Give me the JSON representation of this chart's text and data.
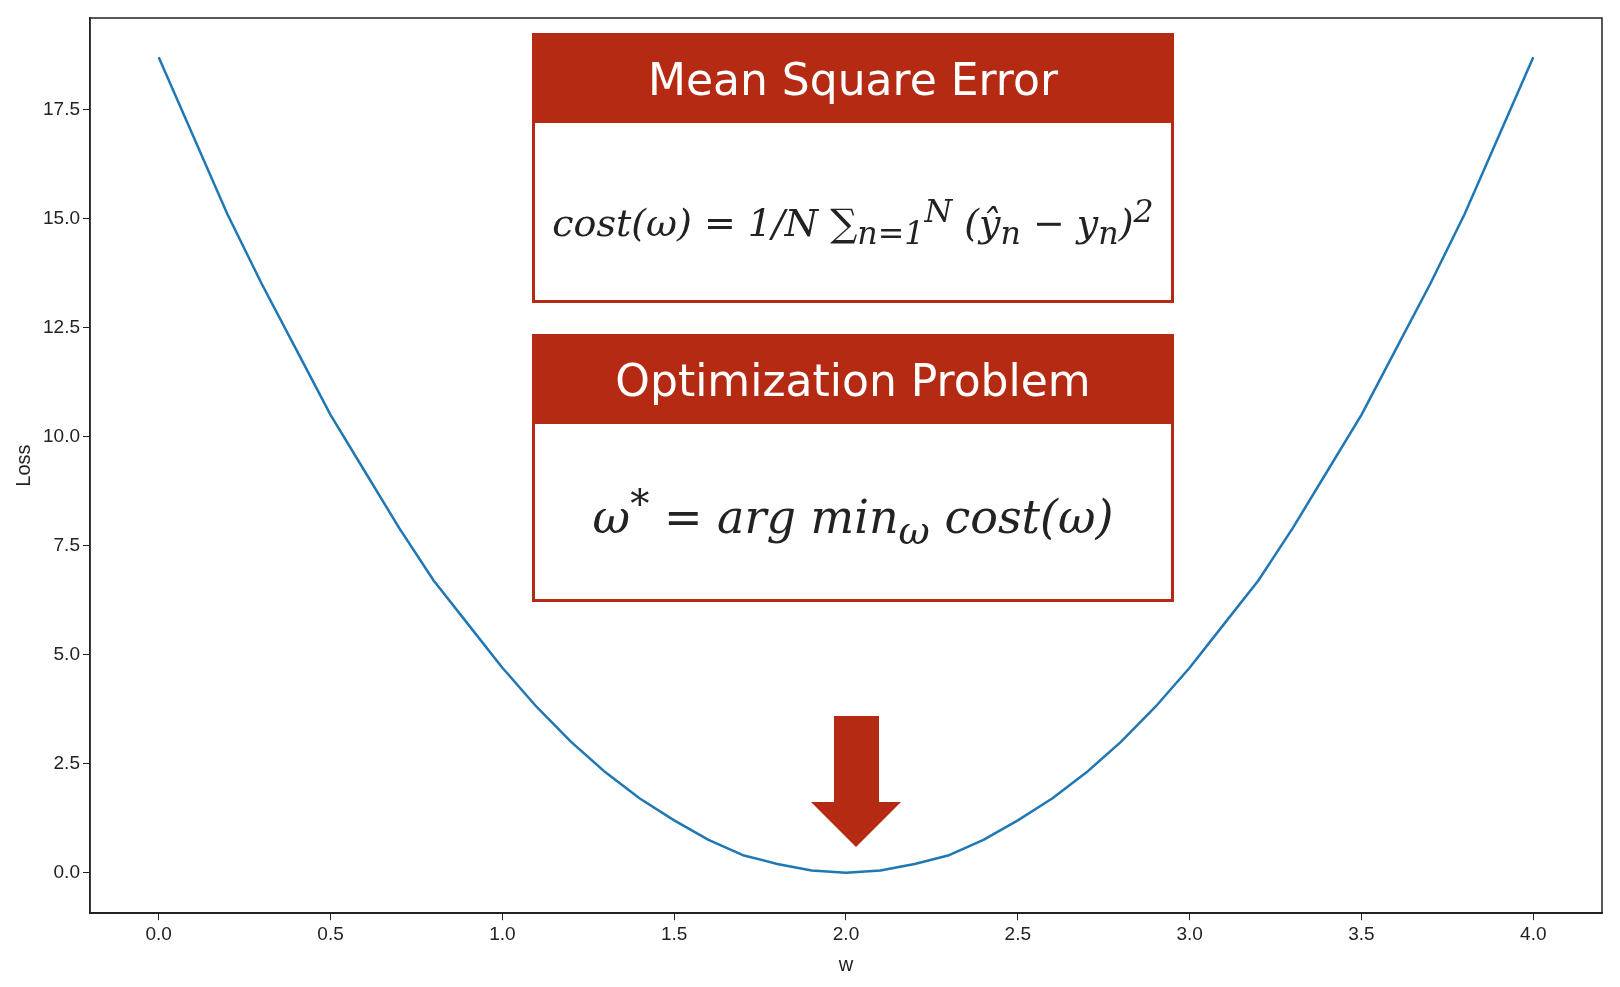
{
  "chart_data": {
    "type": "line",
    "xlabel": "w",
    "ylabel": "Loss",
    "x": [
      0,
      0.1,
      0.2,
      0.3,
      0.4,
      0.5,
      0.6,
      0.7,
      0.8,
      0.9,
      1.0,
      1.1,
      1.2,
      1.3,
      1.4,
      1.5,
      1.6,
      1.7,
      1.8,
      1.9,
      2.0,
      2.1,
      2.2,
      2.3,
      2.4,
      2.5,
      2.6,
      2.7,
      2.8,
      2.9,
      3.0,
      3.1,
      3.2,
      3.3,
      3.4,
      3.5,
      3.6,
      3.7,
      3.8,
      3.9,
      4.0
    ],
    "series": [
      {
        "color": "#1f77b4",
        "values": [
          18.7,
          16.9,
          15.1,
          13.5,
          12.0,
          10.5,
          9.2,
          7.9,
          6.7,
          5.7,
          4.7,
          3.8,
          3.0,
          2.3,
          1.7,
          1.2,
          0.75,
          0.4,
          0.2,
          0.05,
          0,
          0.05,
          0.2,
          0.4,
          0.75,
          1.2,
          1.7,
          2.3,
          3.0,
          3.8,
          4.7,
          5.7,
          6.7,
          7.9,
          9.2,
          10.5,
          12.0,
          13.5,
          15.1,
          16.9,
          18.7
        ]
      }
    ],
    "xlim": [
      -0.2,
      4.2
    ],
    "xticks": [
      {
        "value": 0,
        "label": "0.0"
      },
      {
        "value": 0.5,
        "label": "0.5"
      },
      {
        "value": 1,
        "label": "1.0"
      },
      {
        "value": 1.5,
        "label": "1.5"
      },
      {
        "value": 2,
        "label": "2.0"
      },
      {
        "value": 2.5,
        "label": "2.5"
      },
      {
        "value": 3,
        "label": "3.0"
      },
      {
        "value": 3.5,
        "label": "3.5"
      },
      {
        "value": 4,
        "label": "4.0"
      }
    ],
    "ylim": [
      -0.93,
      19.6
    ],
    "yticks": [
      {
        "value": 0,
        "label": "0.0"
      },
      {
        "value": 2.5,
        "label": "2.5"
      },
      {
        "value": 5,
        "label": "5.0"
      },
      {
        "value": 7.5,
        "label": "7.5"
      },
      {
        "value": 10,
        "label": "10.0"
      },
      {
        "value": 12.5,
        "label": "12.5"
      },
      {
        "value": 15,
        "label": "15.0"
      },
      {
        "value": 17.5,
        "label": "17.5"
      }
    ],
    "grid": false,
    "legend": false,
    "marker": "none",
    "line_style": "solid",
    "annotations": [
      "Mean Square Error",
      "cost(ω) = 1/N ∑$_{n=1}$$^{N}$ (ŷ$_{n}$ − y$_{n}$)$^{2}$",
      "Optimization Problem",
      "ω$^{*}$ = arg min$_{ω}$ cost(ω)"
    ]
  }
}
